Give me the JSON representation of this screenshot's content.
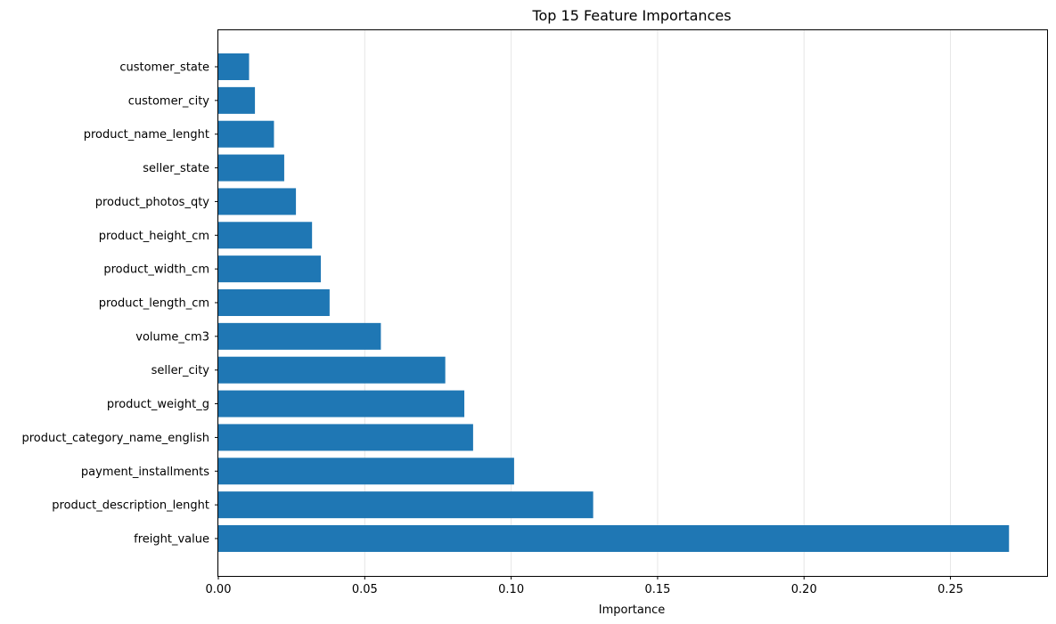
{
  "chart_data": {
    "type": "bar",
    "orientation": "horizontal",
    "title": "Top 15 Feature Importances",
    "xlabel": "Importance",
    "ylabel": "",
    "xlim": [
      0,
      0.283
    ],
    "xticks": [
      0.0,
      0.05,
      0.1,
      0.15,
      0.2,
      0.25
    ],
    "xtick_labels": [
      "0.00",
      "0.05",
      "0.10",
      "0.15",
      "0.20",
      "0.25"
    ],
    "grid": "x",
    "bar_color": "#1f77b4",
    "categories": [
      "freight_value",
      "product_description_lenght",
      "payment_installments",
      "product_category_name_english",
      "product_weight_g",
      "seller_city",
      "volume_cm3",
      "product_length_cm",
      "product_width_cm",
      "product_height_cm",
      "product_photos_qty",
      "seller_state",
      "product_name_lenght",
      "customer_city",
      "customer_state"
    ],
    "values": [
      0.27,
      0.128,
      0.101,
      0.087,
      0.084,
      0.0775,
      0.0555,
      0.038,
      0.035,
      0.032,
      0.0265,
      0.0225,
      0.019,
      0.0125,
      0.0105
    ]
  }
}
